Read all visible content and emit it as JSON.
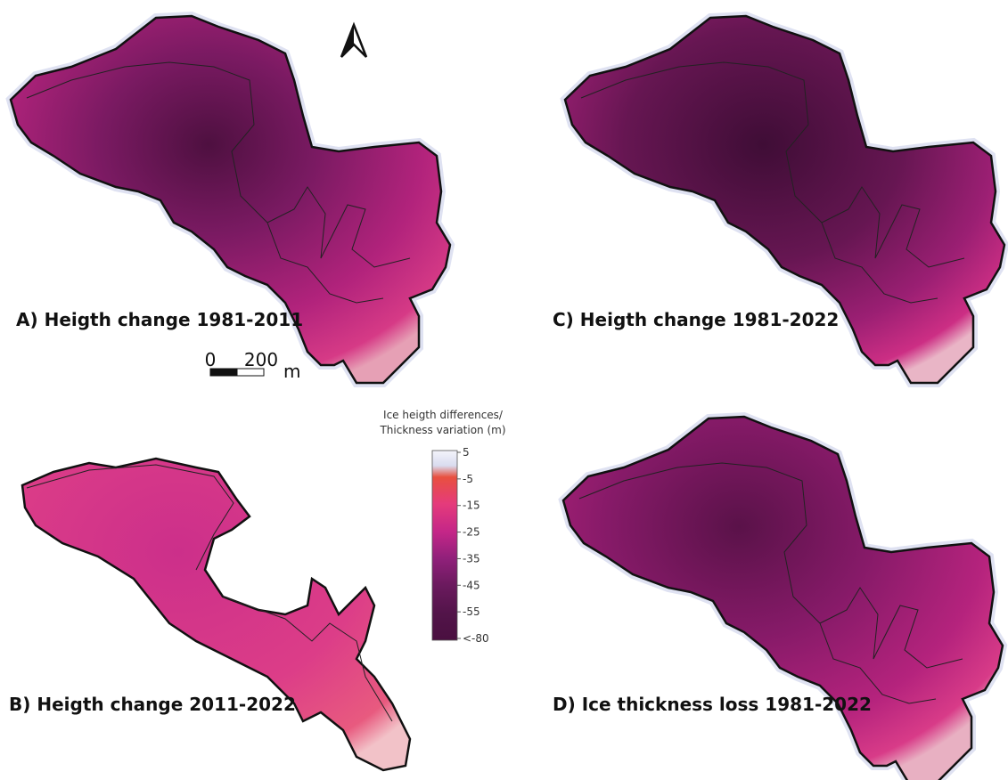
{
  "panels": [
    {
      "label": "A) Heigth change 1981-2011"
    },
    {
      "label": "B) Heigth change 2011-2022"
    },
    {
      "label": "C) Heigth change 1981-2022"
    },
    {
      "label": "D) Ice thickness loss 1981-2022"
    }
  ],
  "scale_bar": {
    "start": "0",
    "end": "200",
    "unit": "m"
  },
  "legend": {
    "title": [
      "Ice heigth differences/",
      "Thickness variation (m)"
    ],
    "ticks": [
      "5",
      "-5",
      "-15",
      "-25",
      "-35",
      "-45",
      "-55",
      "<-80"
    ]
  }
}
